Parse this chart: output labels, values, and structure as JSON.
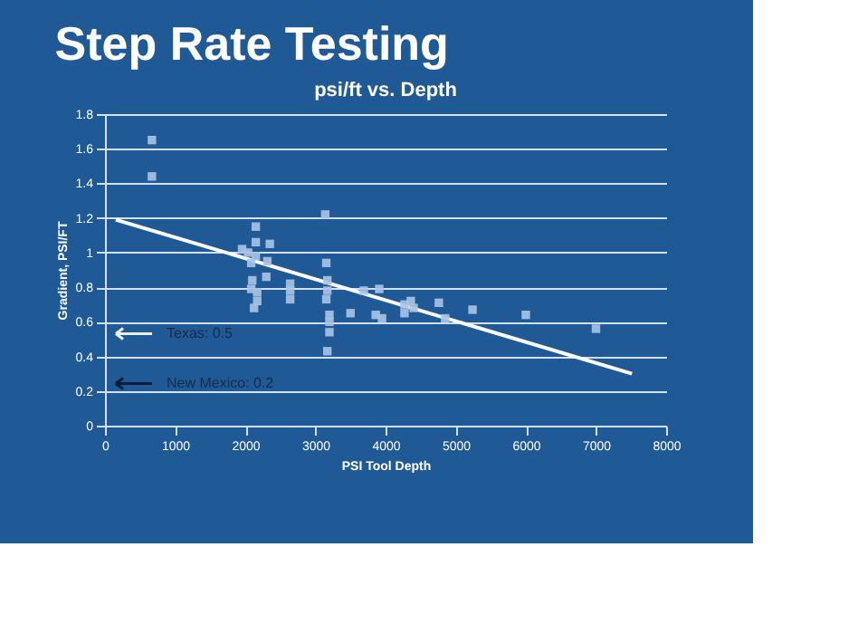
{
  "chart_data": {
    "type": "scatter",
    "title": "Step Rate Testing",
    "subtitle": "psi/ft vs. Depth",
    "xlabel": "PSI Tool Depth",
    "ylabel": "Gradient, PSI/FT",
    "series": [
      {
        "color": "#a9c4e4",
        "marker": "square",
        "x": [
          669,
          669,
          1955,
          2040,
          2085,
          2150,
          2150,
          2150,
          2085,
          2100,
          2125,
          2170,
          2170,
          2350,
          2315,
          2300,
          2640,
          2640,
          2640,
          3140,
          3155,
          3170,
          3170,
          3155,
          3200,
          3200,
          3200,
          3170,
          3500,
          3690,
          3910,
          3860,
          3950,
          4270,
          4360,
          4400,
          4270,
          4760,
          4850,
          5240,
          6000,
          7000
        ],
        "values": [
          1.65,
          1.44,
          1.02,
          1.0,
          0.94,
          1.15,
          1.06,
          0.98,
          0.79,
          0.84,
          0.68,
          0.77,
          0.72,
          1.05,
          0.95,
          0.86,
          0.82,
          0.78,
          0.73,
          1.22,
          0.94,
          0.84,
          0.78,
          0.73,
          0.64,
          0.6,
          0.54,
          0.43,
          0.65,
          0.78,
          0.79,
          0.64,
          0.62,
          0.7,
          0.72,
          0.68,
          0.65,
          0.71,
          0.62,
          0.67,
          0.64,
          0.56
        ]
      },
      {
        "type": "line",
        "color": "#ffffff",
        "line_style": "solid",
        "marker": "none",
        "x": [
          154,
          7513
        ],
        "values": [
          1.19,
          0.3
        ]
      }
    ],
    "annotations": [
      "Texas:  0.5",
      "New Mexico:  0.2"
    ],
    "xlim": [
      0,
      8000
    ],
    "xticks": [
      0,
      1000,
      2000,
      3000,
      4000,
      5000,
      6000,
      7000,
      8000
    ],
    "ylim": [
      0,
      1.8
    ],
    "yticks": [
      0,
      0.2,
      0.4,
      0.6,
      0.8,
      1,
      1.2,
      1.4,
      1.6,
      1.8
    ],
    "grid": "y",
    "legend": false
  }
}
